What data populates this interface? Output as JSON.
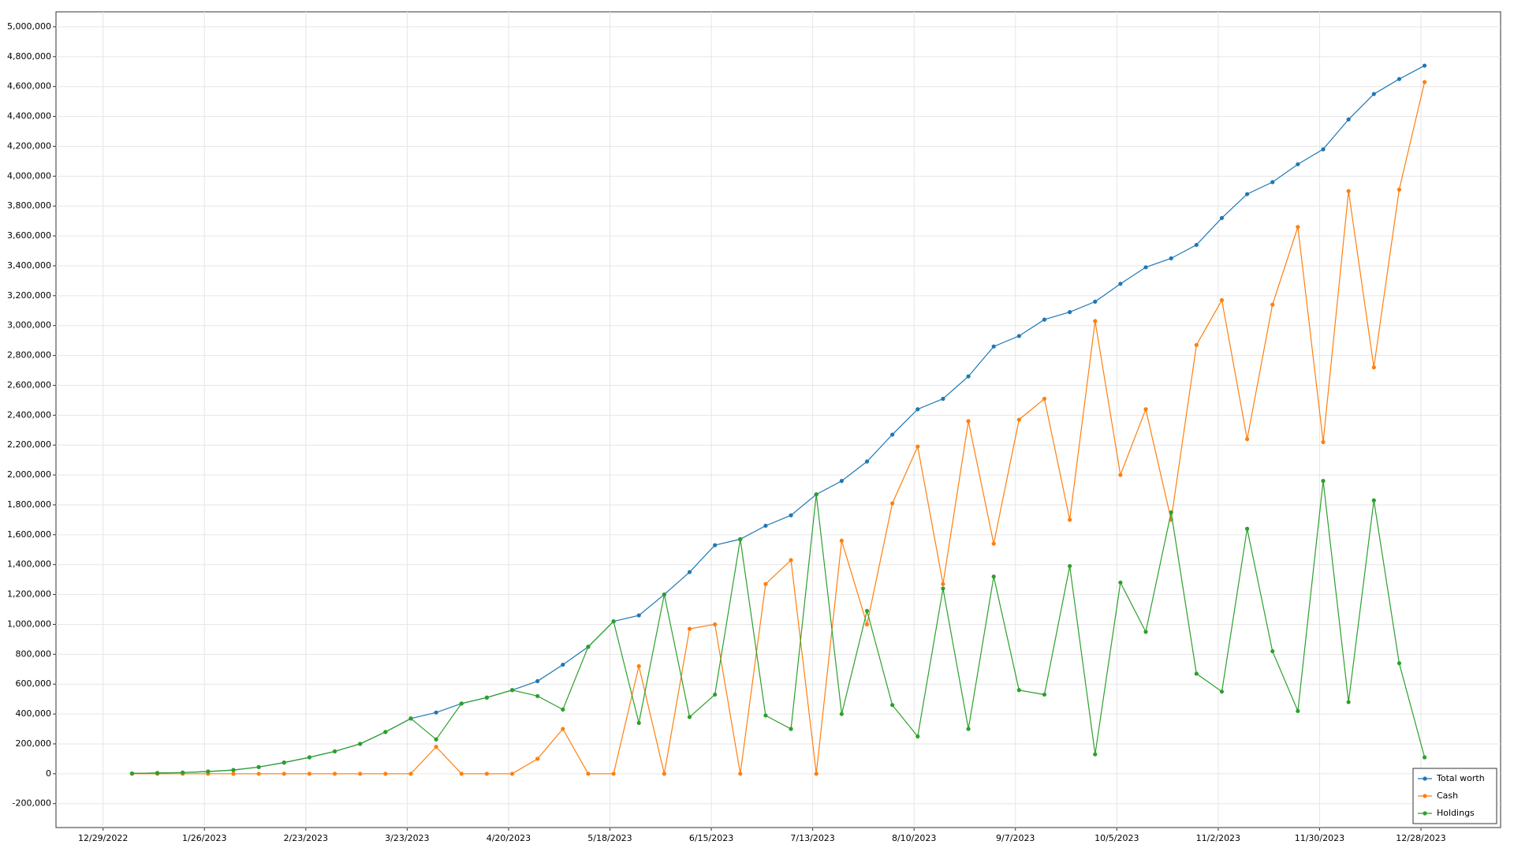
{
  "chart_data": {
    "type": "line",
    "x": [
      "1/6/2023",
      "1/13/2023",
      "1/20/2023",
      "1/27/2023",
      "2/3/2023",
      "2/10/2023",
      "2/17/2023",
      "2/24/2023",
      "3/3/2023",
      "3/10/2023",
      "3/17/2023",
      "3/24/2023",
      "3/31/2023",
      "4/7/2023",
      "4/14/2023",
      "4/21/2023",
      "4/28/2023",
      "5/5/2023",
      "5/12/2023",
      "5/19/2023",
      "5/26/2023",
      "6/2/2023",
      "6/9/2023",
      "6/16/2023",
      "6/23/2023",
      "6/30/2023",
      "7/7/2023",
      "7/14/2023",
      "7/21/2023",
      "7/28/2023",
      "8/4/2023",
      "8/11/2023",
      "8/18/2023",
      "8/25/2023",
      "9/1/2023",
      "9/8/2023",
      "9/15/2023",
      "9/22/2023",
      "9/29/2023",
      "10/6/2023",
      "10/13/2023",
      "10/20/2023",
      "10/27/2023",
      "11/3/2023",
      "11/10/2023",
      "11/17/2023",
      "11/24/2023",
      "12/1/2023",
      "12/8/2023",
      "12/15/2023",
      "12/22/2023",
      "12/29/2023"
    ],
    "series": [
      {
        "name": "Total worth",
        "color": "#1f77b4",
        "values": [
          2000,
          5000,
          8000,
          15000,
          25000,
          45000,
          75000,
          110000,
          150000,
          200000,
          280000,
          370000,
          410000,
          470000,
          510000,
          560000,
          620000,
          730000,
          850000,
          1020000,
          1060000,
          1200000,
          1350000,
          1530000,
          1570000,
          1660000,
          1730000,
          1870000,
          1960000,
          2090000,
          2270000,
          2440000,
          2510000,
          2660000,
          2860000,
          2930000,
          3040000,
          3090000,
          3160000,
          3280000,
          3390000,
          3450000,
          3540000,
          3720000,
          3880000,
          3960000,
          4080000,
          4180000,
          4380000,
          4550000,
          4650000,
          4740000
        ]
      },
      {
        "name": "Cash",
        "color": "#ff7f0e",
        "values": [
          0,
          0,
          0,
          0,
          0,
          0,
          0,
          0,
          0,
          0,
          0,
          0,
          180000,
          0,
          0,
          0,
          100000,
          300000,
          0,
          0,
          720000,
          0,
          970000,
          1000000,
          0,
          1270000,
          1430000,
          0,
          1560000,
          1000000,
          1810000,
          2190000,
          1270000,
          2360000,
          1540000,
          2370000,
          2510000,
          1700000,
          3030000,
          2000000,
          2440000,
          1700000,
          2870000,
          3170000,
          2240000,
          3140000,
          3660000,
          2220000,
          3900000,
          2720000,
          3910000,
          4630000
        ]
      },
      {
        "name": "Holdings",
        "color": "#2ca02c",
        "values": [
          2000,
          5000,
          8000,
          15000,
          25000,
          45000,
          75000,
          110000,
          150000,
          200000,
          280000,
          370000,
          230000,
          470000,
          510000,
          560000,
          520000,
          430000,
          850000,
          1020000,
          340000,
          1200000,
          380000,
          530000,
          1570000,
          390000,
          300000,
          1870000,
          400000,
          1090000,
          460000,
          250000,
          1240000,
          300000,
          1320000,
          560000,
          530000,
          1390000,
          130000,
          1280000,
          950000,
          1750000,
          670000,
          550000,
          1640000,
          820000,
          420000,
          1960000,
          480000,
          1830000,
          740000,
          110000
        ]
      }
    ],
    "xlim": [
      "12/16/2022",
      "1/19/2024"
    ],
    "xticks": [
      "12/29/2022",
      "1/26/2023",
      "2/23/2023",
      "3/23/2023",
      "4/20/2023",
      "5/18/2023",
      "6/15/2023",
      "7/13/2023",
      "8/10/2023",
      "9/7/2023",
      "10/5/2023",
      "11/2/2023",
      "11/30/2023",
      "12/28/2023"
    ],
    "ylim": [
      -360000,
      5100000
    ],
    "yticks": [
      {
        "value": -200000,
        "label": "-200,000"
      },
      0,
      {
        "value": 200000,
        "label": "200,000"
      },
      {
        "value": 400000,
        "label": "400,000"
      },
      {
        "value": 600000,
        "label": "600,000"
      },
      {
        "value": 800000,
        "label": "800,000"
      },
      {
        "value": 1000000,
        "label": "1,000,000"
      },
      {
        "value": 1200000,
        "label": "1,200,000"
      },
      {
        "value": 1400000,
        "label": "1,400,000"
      },
      {
        "value": 1600000,
        "label": "1,600,000"
      },
      {
        "value": 1800000,
        "label": "1,800,000"
      },
      {
        "value": 2000000,
        "label": "2,000,000"
      },
      {
        "value": 2200000,
        "label": "2,200,000"
      },
      {
        "value": 2400000,
        "label": "2,400,000"
      },
      {
        "value": 2600000,
        "label": "2,600,000"
      },
      {
        "value": 2800000,
        "label": "2,800,000"
      },
      {
        "value": 3000000,
        "label": "3,000,000"
      },
      {
        "value": 3200000,
        "label": "3,200,000"
      },
      {
        "value": 3400000,
        "label": "3,400,000"
      },
      {
        "value": 3600000,
        "label": "3,600,000"
      },
      {
        "value": 3800000,
        "label": "3,800,000"
      },
      {
        "value": 4000000,
        "label": "4,000,000"
      },
      {
        "value": 4200000,
        "label": "4,200,000"
      },
      {
        "value": 4400000,
        "label": "4,400,000"
      },
      {
        "value": 4600000,
        "label": "4,600,000"
      },
      {
        "value": 4800000,
        "label": "4,800,000"
      },
      {
        "value": 5000000,
        "label": "5,000,000"
      }
    ],
    "grid": true,
    "legend": "lower-right"
  }
}
